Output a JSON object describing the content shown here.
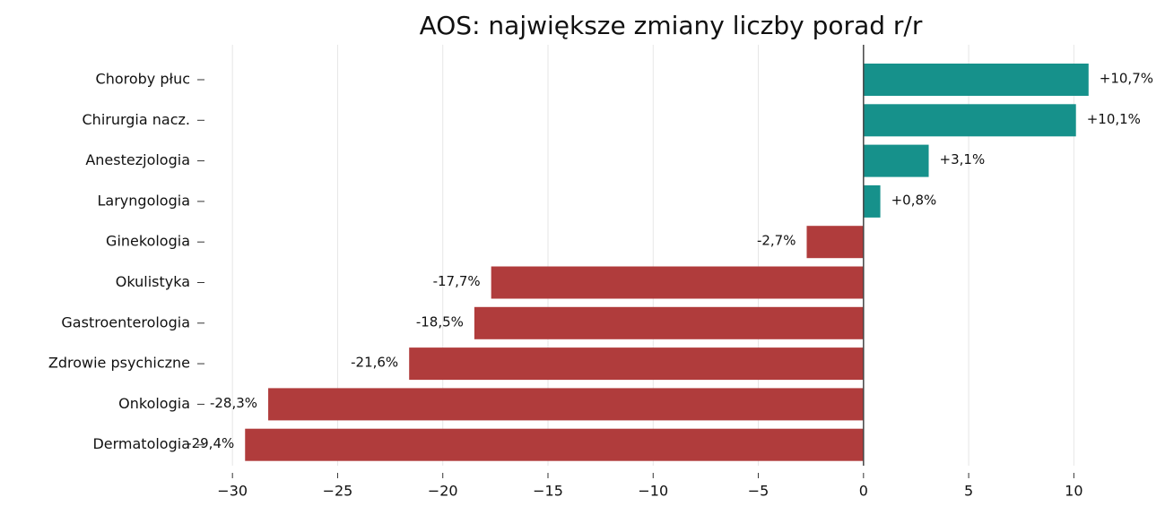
{
  "chart_data": {
    "type": "barh",
    "title": "AOS: największe zmiany liczby porad r/r",
    "categories": [
      "Choroby płuc",
      "Chirurgia nacz.",
      "Anestezjologia",
      "Laryngologia",
      "Ginekologia",
      "Okulistyka",
      "Gastroenterologia",
      "Zdrowie psychiczne",
      "Onkologia",
      "Dermatologia"
    ],
    "values": [
      10.7,
      10.1,
      3.1,
      0.8,
      -2.7,
      -17.7,
      -18.5,
      -21.6,
      -28.3,
      -29.4
    ],
    "value_labels": [
      "+10,7%",
      "+10,1%",
      "+3,1%",
      "+0,8%",
      "-2,7%",
      "-17,7%",
      "-18,5%",
      "-21,6%",
      "-28,3%",
      "-29,4%"
    ],
    "color_positive": "#16918b",
    "color_negative": "#b03c3c",
    "xlim": [
      -31.5,
      12.5
    ],
    "xticks": [
      {
        "value": -30,
        "label": "−30"
      },
      {
        "value": -25,
        "label": "−25"
      },
      {
        "value": -20,
        "label": "−20"
      },
      {
        "value": -15,
        "label": "−15"
      },
      {
        "value": -10,
        "label": "−10"
      },
      {
        "value": -5,
        "label": "−5"
      },
      0,
      5,
      10
    ],
    "grid": true
  }
}
